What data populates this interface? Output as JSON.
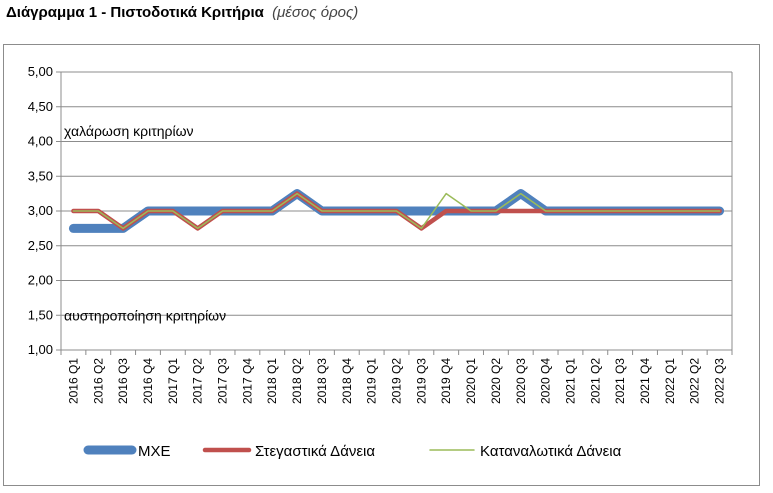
{
  "page": {
    "title_main": "Διάγραμμα 1 - Πιστοδοτικά Κριτήρια",
    "title_sub": "(μέσος όρος)"
  },
  "chart_data": {
    "type": "line",
    "title": "Διάγραμμα 1 - Πιστοδοτικά Κριτήρια (μέσος όρος)",
    "xlabel": "",
    "ylabel": "",
    "ylim": [
      1.0,
      5.0
    ],
    "yticks": [
      "1,00",
      "1,50",
      "2,00",
      "2,50",
      "3,00",
      "3,50",
      "4,00",
      "4,50",
      "5,00"
    ],
    "grid": true,
    "legend_position": "bottom",
    "categories": [
      "2016 Q1",
      "2016 Q2",
      "2016 Q3",
      "2016 Q4",
      "2017 Q1",
      "2017 Q2",
      "2017 Q3",
      "2017 Q4",
      "2018 Q1",
      "2018 Q2",
      "2018 Q3",
      "2018 Q4",
      "2019 Q1",
      "2019 Q2",
      "2019 Q3",
      "2019 Q4",
      "2020 Q1",
      "2020 Q2",
      "2020 Q3",
      "2020 Q4",
      "2021 Q1",
      "2021 Q2",
      "2021 Q3",
      "2021 Q4",
      "2022 Q1",
      "2022 Q2",
      "2022 Q3"
    ],
    "series": [
      {
        "name": "ΜΧΕ",
        "color": "#4f81bd",
        "style": "thick",
        "values": [
          2.75,
          2.75,
          2.75,
          3.0,
          3.0,
          3.0,
          3.0,
          3.0,
          3.0,
          3.25,
          3.0,
          3.0,
          3.0,
          3.0,
          3.0,
          3.0,
          3.0,
          3.0,
          3.25,
          3.0,
          3.0,
          3.0,
          3.0,
          3.0,
          3.0,
          3.0,
          3.0
        ]
      },
      {
        "name": "Στεγαστικά Δάνεια",
        "color": "#c0504d",
        "style": "medium",
        "values": [
          3.0,
          3.0,
          2.75,
          3.0,
          3.0,
          2.75,
          3.0,
          3.0,
          3.0,
          3.25,
          3.0,
          3.0,
          3.0,
          3.0,
          2.75,
          3.0,
          3.0,
          3.0,
          3.0,
          3.0,
          3.0,
          3.0,
          3.0,
          3.0,
          3.0,
          3.0,
          3.0
        ]
      },
      {
        "name": "Καταναλωτικά Δάνεια",
        "color": "#9bbb59",
        "style": "thin",
        "values": [
          3.0,
          3.0,
          2.75,
          3.0,
          3.0,
          2.75,
          3.0,
          3.0,
          3.0,
          3.25,
          3.0,
          3.0,
          3.0,
          3.0,
          2.75,
          3.25,
          3.0,
          3.0,
          3.25,
          3.0,
          3.0,
          3.0,
          3.0,
          3.0,
          3.0,
          3.0,
          3.0
        ]
      }
    ],
    "annotations": [
      {
        "text": "χαλάρωση κριτηρίων",
        "y": 4.15
      },
      {
        "text": "αυστηροποίηση κριτηρίων",
        "y": 1.5
      }
    ]
  }
}
